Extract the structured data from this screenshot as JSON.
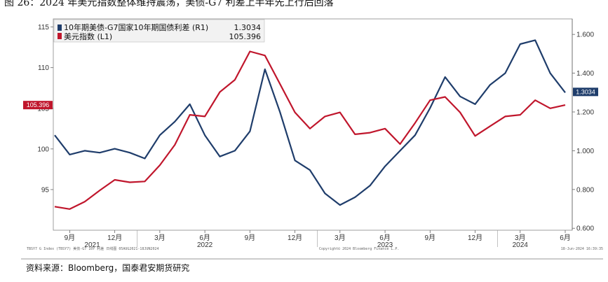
{
  "title": "图 26：2024 年美元指数整体维持震荡，美债-G7 利差上半年先上行后回落",
  "source": "资料来源：Bloomberg，国泰君安期货研究",
  "footer": {
    "left": "TBSY7 G Index (TBSY7) 美债-G7 10Y 利差 日线图 05AUG2021-18JUN2024",
    "center": "Copyright© 2024 Bloomberg Finance L.P.",
    "right": "18-Jun-2024 16:39:35"
  },
  "colors": {
    "spread": "#1f3d6b",
    "dxy": "#c0162c",
    "background": "#ffffff"
  },
  "chart_data": {
    "type": "line",
    "x": [
      "2021-08",
      "2021-09",
      "2021-10",
      "2021-11",
      "2021-12",
      "2022-01",
      "2022-02",
      "2022-03",
      "2022-04",
      "2022-05",
      "2022-06",
      "2022-07",
      "2022-08",
      "2022-09",
      "2022-10",
      "2022-11",
      "2022-12",
      "2023-01",
      "2023-02",
      "2023-03",
      "2023-04",
      "2023-05",
      "2023-06",
      "2023-07",
      "2023-08",
      "2023-09",
      "2023-10",
      "2023-11",
      "2023-12",
      "2024-01",
      "2024-02",
      "2024-03",
      "2024-04",
      "2024-05",
      "2024-06"
    ],
    "x_tick_labels": [
      "9月",
      "12月",
      "3月",
      "6月",
      "9月",
      "12月",
      "3月",
      "6月",
      "9月",
      "12月",
      "3月",
      "6月"
    ],
    "x_year_labels": [
      "2021",
      "2022",
      "2023",
      "2024"
    ],
    "series": [
      {
        "name": "10年期美债-G7国家10年期国债利差 (R1)",
        "last_value": 1.3034,
        "axis": "right",
        "values": [
          1.08,
          0.98,
          1.0,
          0.99,
          1.01,
          0.99,
          0.96,
          1.08,
          1.15,
          1.24,
          1.08,
          0.97,
          1.0,
          1.1,
          1.42,
          1.2,
          0.95,
          0.9,
          0.78,
          0.72,
          0.76,
          0.82,
          0.92,
          1.0,
          1.08,
          1.22,
          1.38,
          1.28,
          1.24,
          1.34,
          1.4,
          1.55,
          1.57,
          1.4,
          1.3
        ]
      },
      {
        "name": "美元指数 (L1)",
        "last_value": 105.396,
        "axis": "left",
        "values": [
          92.9,
          92.6,
          93.5,
          94.9,
          96.2,
          95.9,
          96.0,
          98.0,
          100.5,
          104.2,
          104.0,
          107.0,
          108.5,
          112.0,
          111.5,
          108.0,
          104.5,
          102.5,
          104.0,
          104.5,
          101.8,
          102.0,
          102.5,
          100.6,
          103.2,
          106.0,
          106.4,
          104.5,
          101.6,
          102.8,
          104.0,
          104.2,
          106.0,
          105.0,
          105.4
        ]
      }
    ],
    "y_left": {
      "ticks": [
        95,
        100,
        105,
        110,
        115
      ],
      "ylim": [
        90,
        116
      ]
    },
    "y_right": {
      "ticks": [
        "0.600",
        "0.800",
        "1.000",
        "1.200",
        "1.400",
        "1.600"
      ],
      "ylim": [
        0.59,
        1.68
      ]
    },
    "badges": {
      "left": "105.396",
      "right": "1.3034"
    },
    "legend": "top-left",
    "grid": false
  }
}
